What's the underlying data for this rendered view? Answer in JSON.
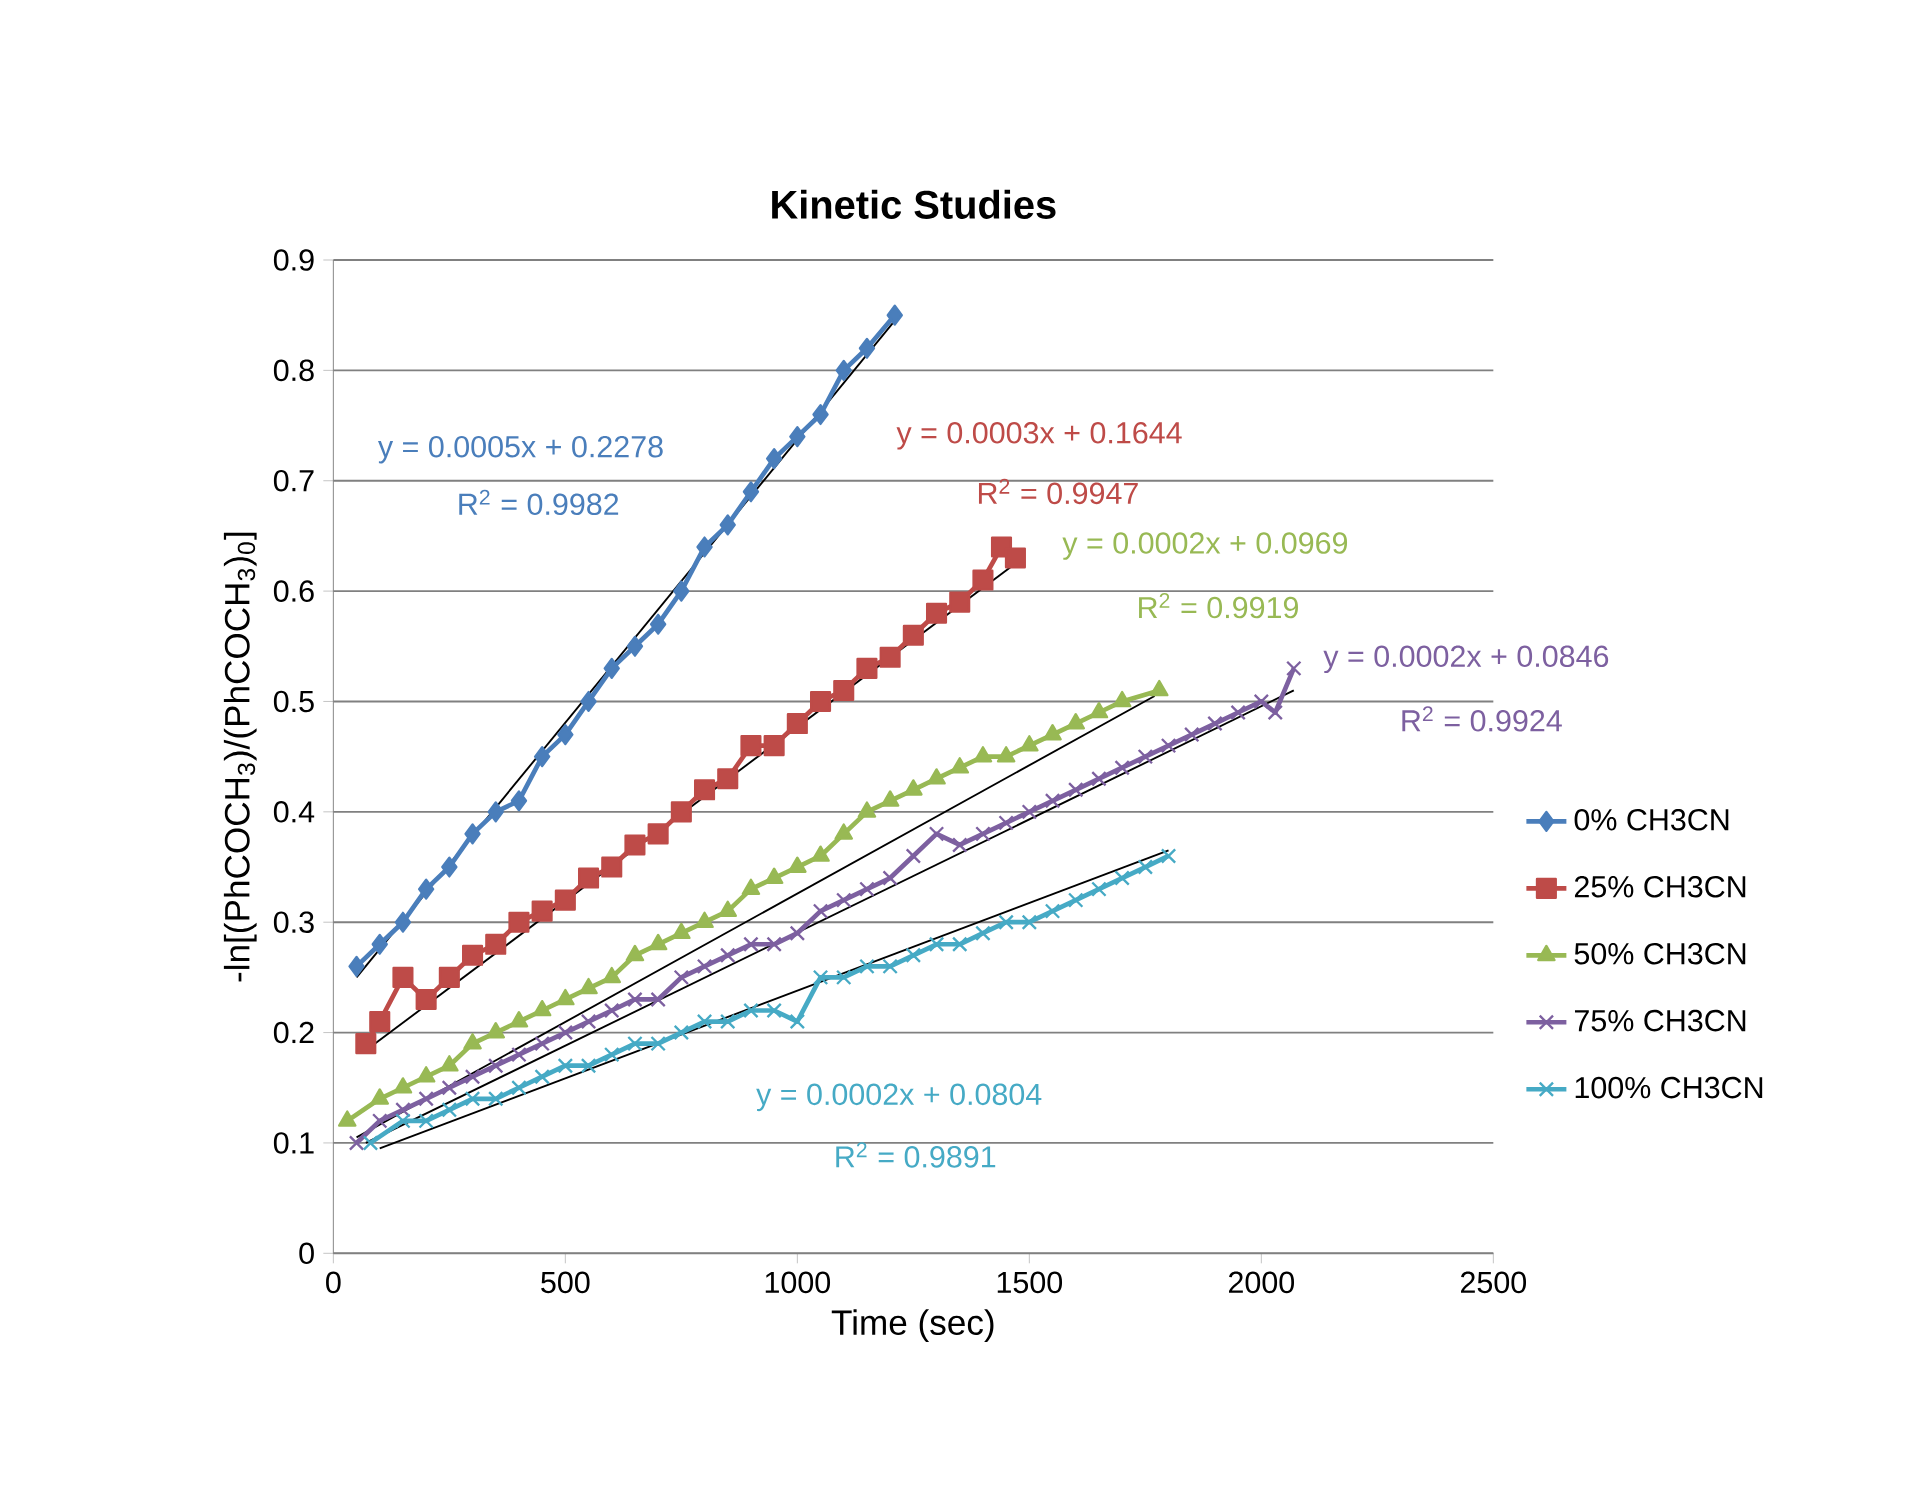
{
  "chart_data": {
    "type": "line",
    "title": "Kinetic Studies",
    "xlabel": "Time (sec)",
    "ylabel": "-ln[(PhCOCH$_{3}$)/(PhCOCH$_{3}$)$_{0}$]",
    "xlim": [
      0,
      2500
    ],
    "xticks": [
      0,
      500,
      1000,
      1500,
      2000,
      2500
    ],
    "ylim": [
      0,
      0.9
    ],
    "yticks": [
      0,
      0.1,
      0.2,
      0.3,
      0.4,
      0.5,
      0.6,
      0.7,
      0.8,
      0.9
    ],
    "grid": "y",
    "legend": "right",
    "line_style": "solid",
    "series": [
      {
        "name": "0% CH3CN",
        "color": "#4a7ebb",
        "marker": "diamond",
        "x": [
          50,
          100,
          150,
          200,
          250,
          300,
          350,
          400,
          450,
          500,
          550,
          600,
          650,
          700,
          750,
          800,
          850,
          900,
          950,
          1000,
          1050,
          1100,
          1150,
          1210
        ],
        "values": [
          0.26,
          0.28,
          0.3,
          0.33,
          0.35,
          0.38,
          0.4,
          0.41,
          0.45,
          0.47,
          0.5,
          0.53,
          0.55,
          0.57,
          0.6,
          0.64,
          0.66,
          0.69,
          0.72,
          0.74,
          0.76,
          0.8,
          0.82,
          0.85
        ]
      },
      {
        "name": "25% CH3CN",
        "color": "#be4b48",
        "marker": "square",
        "x": [
          70,
          100,
          150,
          200,
          250,
          300,
          350,
          400,
          450,
          500,
          550,
          600,
          650,
          700,
          750,
          800,
          850,
          900,
          950,
          1000,
          1050,
          1100,
          1150,
          1200,
          1250,
          1300,
          1350,
          1400,
          1440,
          1470
        ],
        "values": [
          0.19,
          0.21,
          0.25,
          0.23,
          0.25,
          0.27,
          0.28,
          0.3,
          0.31,
          0.32,
          0.34,
          0.35,
          0.37,
          0.38,
          0.4,
          0.42,
          0.43,
          0.46,
          0.46,
          0.48,
          0.5,
          0.51,
          0.53,
          0.54,
          0.56,
          0.58,
          0.59,
          0.61,
          0.64,
          0.63
        ]
      },
      {
        "name": "50% CH3CN",
        "color": "#98b954",
        "marker": "triangle",
        "x": [
          30,
          100,
          150,
          200,
          250,
          300,
          350,
          400,
          450,
          500,
          550,
          600,
          650,
          700,
          750,
          800,
          850,
          900,
          950,
          1000,
          1050,
          1100,
          1150,
          1200,
          1250,
          1300,
          1350,
          1400,
          1450,
          1500,
          1550,
          1600,
          1650,
          1700,
          1780
        ],
        "values": [
          0.12,
          0.14,
          0.15,
          0.16,
          0.17,
          0.19,
          0.2,
          0.21,
          0.22,
          0.23,
          0.24,
          0.25,
          0.27,
          0.28,
          0.29,
          0.3,
          0.31,
          0.33,
          0.34,
          0.35,
          0.36,
          0.38,
          0.4,
          0.41,
          0.42,
          0.43,
          0.44,
          0.45,
          0.45,
          0.46,
          0.47,
          0.48,
          0.49,
          0.5,
          0.51
        ]
      },
      {
        "name": "75% CH3CN",
        "color": "#7d60a0",
        "marker": "cross",
        "x": [
          50,
          100,
          150,
          200,
          250,
          300,
          350,
          400,
          450,
          500,
          550,
          600,
          650,
          700,
          750,
          800,
          850,
          900,
          950,
          1000,
          1050,
          1100,
          1150,
          1200,
          1250,
          1300,
          1350,
          1400,
          1450,
          1500,
          1550,
          1600,
          1650,
          1700,
          1750,
          1800,
          1850,
          1900,
          1950,
          2000,
          2030,
          2070
        ],
        "values": [
          0.1,
          0.12,
          0.13,
          0.14,
          0.15,
          0.16,
          0.17,
          0.18,
          0.19,
          0.2,
          0.21,
          0.22,
          0.23,
          0.23,
          0.25,
          0.26,
          0.27,
          0.28,
          0.28,
          0.29,
          0.31,
          0.32,
          0.33,
          0.34,
          0.36,
          0.38,
          0.37,
          0.38,
          0.39,
          0.4,
          0.41,
          0.42,
          0.43,
          0.44,
          0.45,
          0.46,
          0.47,
          0.48,
          0.49,
          0.5,
          0.49,
          0.53
        ]
      },
      {
        "name": "100% CH3CN",
        "color": "#46aac5",
        "marker": "cross",
        "x": [
          80,
          150,
          200,
          250,
          300,
          350,
          400,
          450,
          500,
          550,
          600,
          650,
          700,
          750,
          800,
          850,
          900,
          950,
          1000,
          1050,
          1100,
          1150,
          1200,
          1250,
          1300,
          1350,
          1400,
          1450,
          1500,
          1550,
          1600,
          1650,
          1700,
          1750,
          1800
        ],
        "values": [
          0.1,
          0.12,
          0.12,
          0.13,
          0.14,
          0.14,
          0.15,
          0.16,
          0.17,
          0.17,
          0.18,
          0.19,
          0.19,
          0.2,
          0.21,
          0.21,
          0.22,
          0.22,
          0.21,
          0.25,
          0.25,
          0.26,
          0.26,
          0.27,
          0.28,
          0.28,
          0.29,
          0.3,
          0.3,
          0.31,
          0.32,
          0.33,
          0.34,
          0.35,
          0.36
        ]
      },
      {
        "type": "line",
        "color": "#000000",
        "marker": "none",
        "x": [
          50,
          1210
        ],
        "values": [
          0.25,
          0.845
        ]
      },
      {
        "type": "line",
        "color": "#000000",
        "marker": "none",
        "x": [
          90,
          1470
        ],
        "values": [
          0.19,
          0.625
        ]
      },
      {
        "type": "line",
        "color": "#000000",
        "marker": "none",
        "x": [
          50,
          1770
        ],
        "values": [
          0.105,
          0.505
        ]
      },
      {
        "type": "line",
        "color": "#000000",
        "marker": "none",
        "x": [
          70,
          2070
        ],
        "values": [
          0.1,
          0.51
        ]
      },
      {
        "type": "line",
        "color": "#000000",
        "marker": "none",
        "x": [
          100,
          1800
        ],
        "values": [
          0.095,
          0.365
        ]
      }
    ],
    "annotations": [
      "y = 0.0005x + 0.2278",
      "R$^{2}$ = 0.9982",
      "y = 0.0003x + 0.1644",
      "R$^{2}$ = 0.9947",
      "y = 0.0002x + 0.0969",
      "R$^{2}$ = 0.9919",
      "y = 0.0002x + 0.0846",
      "R$^{2}$ = 0.9924",
      "y = 0.0002x + 0.0804",
      "R$^{2}$ = 0.9891"
    ]
  }
}
